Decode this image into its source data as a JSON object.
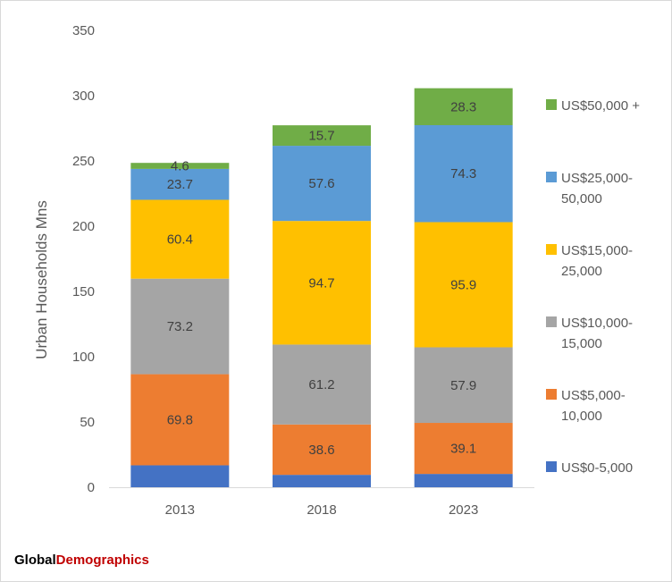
{
  "chart_data": {
    "type": "bar",
    "stacked": true,
    "title": "",
    "xlabel": "",
    "ylabel": "Urban Households Mns",
    "ylim": [
      0,
      350
    ],
    "yticks": [
      0,
      50,
      100,
      150,
      200,
      250,
      300,
      350
    ],
    "categories": [
      "2013",
      "2018",
      "2023"
    ],
    "series": [
      {
        "name": "US$0-5,000",
        "legend_lines": [
          "US$0-5,000"
        ],
        "color": "#4472c4",
        "values": [
          16.8,
          9.5,
          10.2
        ],
        "labels": [
          "",
          "",
          ""
        ]
      },
      {
        "name": "US$5,000-10,000",
        "legend_lines": [
          "US$5,000-",
          "10,000"
        ],
        "color": "#ed7d31",
        "values": [
          69.8,
          38.6,
          39.1
        ],
        "labels": [
          "69.8",
          "38.6",
          "39.1"
        ]
      },
      {
        "name": "US$10,000-15,000",
        "legend_lines": [
          "US$10,000-",
          "15,000"
        ],
        "color": "#a5a5a5",
        "values": [
          73.2,
          61.2,
          57.9
        ],
        "labels": [
          "73.2",
          "61.2",
          "57.9"
        ]
      },
      {
        "name": "US$15,000-25,000",
        "legend_lines": [
          "US$15,000-",
          "25,000"
        ],
        "color": "#ffc000",
        "values": [
          60.4,
          94.7,
          95.9
        ],
        "labels": [
          "60.4",
          "94.7",
          "95.9"
        ]
      },
      {
        "name": "US$25,000-50,000",
        "legend_lines": [
          "US$25,000-",
          "50,000"
        ],
        "color": "#5b9bd5",
        "values": [
          23.7,
          57.6,
          74.3
        ],
        "labels": [
          "23.7",
          "57.6",
          "74.3"
        ]
      },
      {
        "name": "US$50,000 +",
        "legend_lines": [
          "US$50,000 +"
        ],
        "color": "#70ad47",
        "values": [
          4.6,
          15.7,
          28.3
        ],
        "labels": [
          "4.6",
          "15.7",
          "28.3"
        ]
      }
    ],
    "legend_position": "right"
  },
  "branding": {
    "part1": "Global",
    "part2": "Demographics"
  }
}
